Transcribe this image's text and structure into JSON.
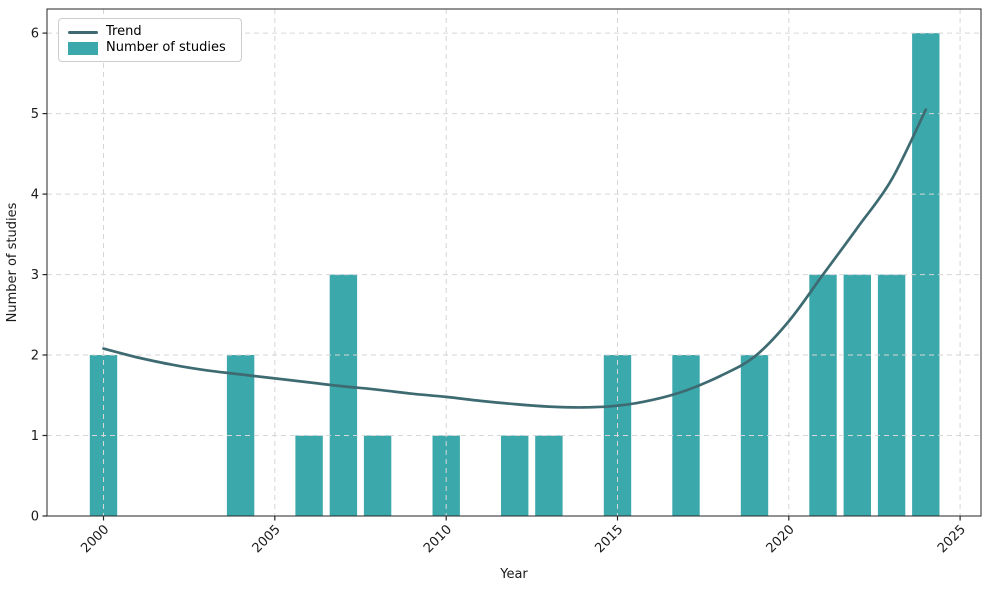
{
  "chart_data": {
    "type": "bar",
    "title": "",
    "xlabel": "Year",
    "ylabel": "Number of studies",
    "x_ticks": [
      2000,
      2005,
      2010,
      2015,
      2020,
      2025
    ],
    "y_ticks": [
      0,
      1,
      2,
      3,
      4,
      5,
      6
    ],
    "xlim": [
      1998.35,
      2025.61
    ],
    "ylim": [
      0,
      6.3
    ],
    "grid": true,
    "grid_color": "#d6d6d6",
    "axis_color": "#262626",
    "legend": {
      "position": "upper-left",
      "entries": [
        "Trend",
        "Number of studies"
      ]
    },
    "series": [
      {
        "name": "Number of studies",
        "type": "bar",
        "color": "#3BA8AC",
        "bar_width_years": 0.8,
        "x": [
          2000,
          2001,
          2002,
          2003,
          2004,
          2005,
          2006,
          2007,
          2008,
          2009,
          2010,
          2011,
          2012,
          2013,
          2014,
          2015,
          2016,
          2017,
          2018,
          2019,
          2020,
          2021,
          2022,
          2023,
          2024
        ],
        "values": [
          2,
          0,
          0,
          0,
          2,
          0,
          1,
          3,
          1,
          0,
          1,
          0,
          1,
          1,
          0,
          2,
          0,
          2,
          0,
          2,
          0,
          3,
          3,
          3,
          6
        ]
      },
      {
        "name": "Trend",
        "type": "line",
        "color": "#3E6B72",
        "x": [
          2000,
          2001,
          2002,
          2003,
          2004,
          2005,
          2006,
          2007,
          2008,
          2009,
          2010,
          2011,
          2012,
          2013,
          2014,
          2015,
          2016,
          2017,
          2018,
          2019,
          2020,
          2021,
          2022,
          2023,
          2024
        ],
        "values": [
          2.08,
          1.97,
          1.88,
          1.81,
          1.76,
          1.71,
          1.66,
          1.61,
          1.57,
          1.52,
          1.48,
          1.43,
          1.39,
          1.36,
          1.35,
          1.37,
          1.44,
          1.56,
          1.74,
          1.98,
          2.42,
          3.0,
          3.58,
          4.18,
          5.05
        ]
      }
    ]
  }
}
